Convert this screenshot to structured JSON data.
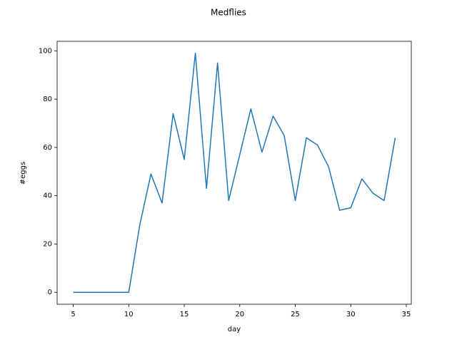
{
  "chart_data": {
    "type": "line",
    "title": "Medflies",
    "x_label": "day",
    "y_label": "#eggs",
    "x": [
      5,
      6,
      7,
      8,
      9,
      10,
      11,
      12,
      13,
      14,
      15,
      16,
      17,
      18,
      19,
      20,
      21,
      22,
      23,
      24,
      25,
      26,
      27,
      28,
      29,
      30,
      31,
      32,
      33,
      34
    ],
    "series": [
      {
        "color": "#1f77b4",
        "values": [
          0,
          0,
          0,
          0,
          0,
          0,
          28,
          49,
          37,
          74,
          55,
          99,
          43,
          95,
          38,
          57,
          76,
          58,
          73,
          65,
          38,
          64,
          61,
          52,
          34,
          35,
          47,
          41,
          38,
          64
        ]
      }
    ],
    "xlim": [
      3.55,
      35.45
    ],
    "xticks": [
      5,
      10,
      15,
      20,
      25,
      30,
      35
    ],
    "ylim": [
      -4.95,
      103.95
    ],
    "yticks": [
      0,
      20,
      40,
      60,
      80,
      100
    ]
  }
}
